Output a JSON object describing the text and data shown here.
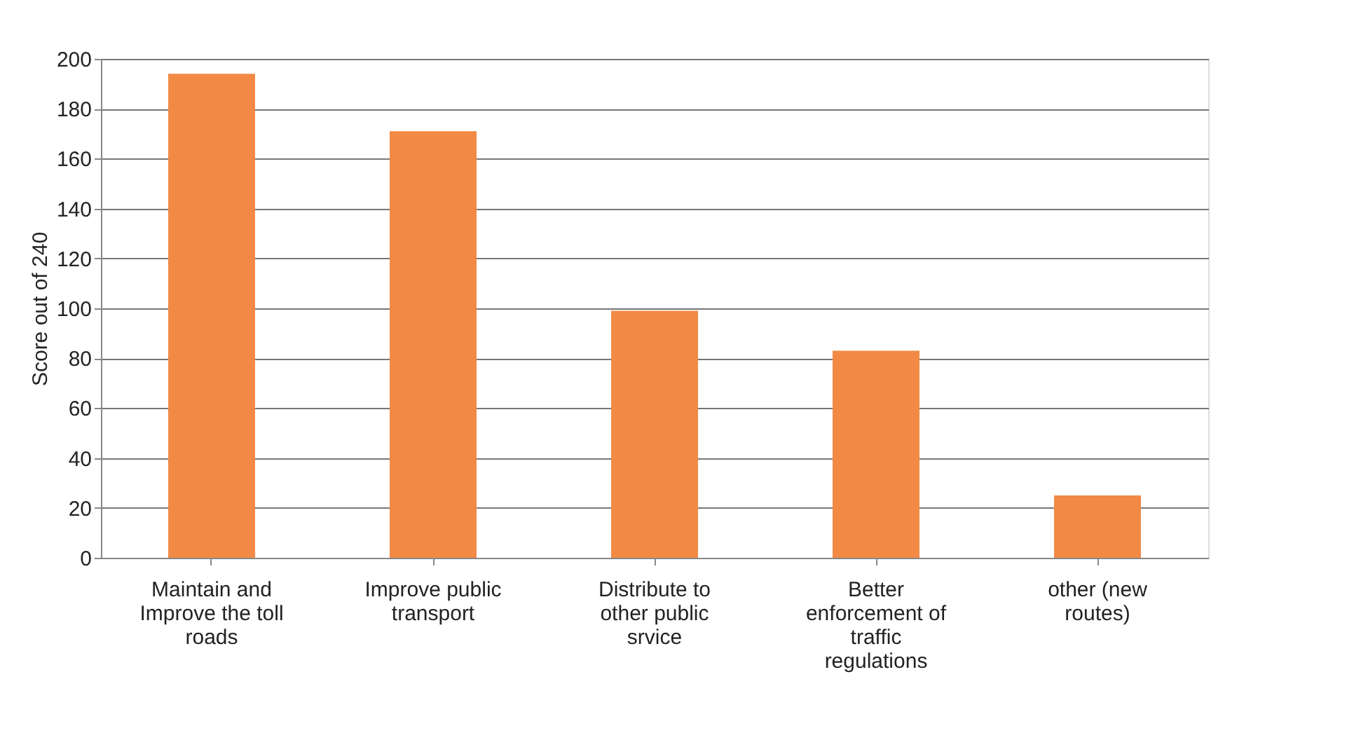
{
  "chart_data": {
    "type": "bar",
    "ylabel": "Score out of 240",
    "categories": [
      "Maintain and Improve the toll roads",
      "Improve public transport",
      "Distribute to other public srvice",
      "Better enforcement of traffic regulations",
      "other (new routes)"
    ],
    "values": [
      194,
      171,
      99,
      83,
      25
    ],
    "color": "#f28a45",
    "ylim": [
      0,
      200
    ],
    "yticks": [
      0,
      20,
      40,
      60,
      80,
      100,
      120,
      140,
      160,
      180,
      200
    ],
    "grid": "y"
  }
}
